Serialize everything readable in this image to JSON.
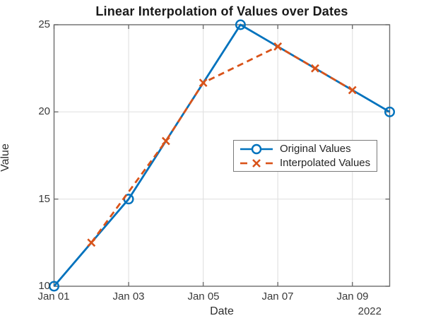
{
  "chart_data": {
    "type": "line",
    "title": "Linear Interpolation of Values over Dates",
    "xlabel": "Date",
    "ylabel": "Value",
    "x_secondary_label": "2022",
    "x_tick_days": [
      1,
      3,
      5,
      7,
      9
    ],
    "x_tick_labels": [
      "Jan 01",
      "Jan 03",
      "Jan 05",
      "Jan 07",
      "Jan 09"
    ],
    "y_ticks": [
      10,
      15,
      20,
      25
    ],
    "xlim_days": [
      1,
      10
    ],
    "ylim": [
      10,
      25
    ],
    "grid": true,
    "legend_position": "middle-right",
    "series": [
      {
        "name": "Original Values",
        "color": "#0072BD",
        "style": "solid",
        "marker": "circle",
        "x_days": [
          1,
          3,
          6,
          10
        ],
        "values": [
          10,
          15,
          25,
          20
        ]
      },
      {
        "name": "Interpolated Values",
        "color": "#D95319",
        "style": "dashed",
        "marker": "x",
        "x_days": [
          2,
          4,
          5,
          7,
          8,
          9
        ],
        "values": [
          12.5,
          18.33,
          21.67,
          23.75,
          22.5,
          21.25
        ]
      }
    ],
    "colors": {
      "grid": "#e2e2e2",
      "axis_box": "#6e6e6e",
      "tick_label": "#3a3a3a",
      "title": "#1a1a1a"
    }
  }
}
